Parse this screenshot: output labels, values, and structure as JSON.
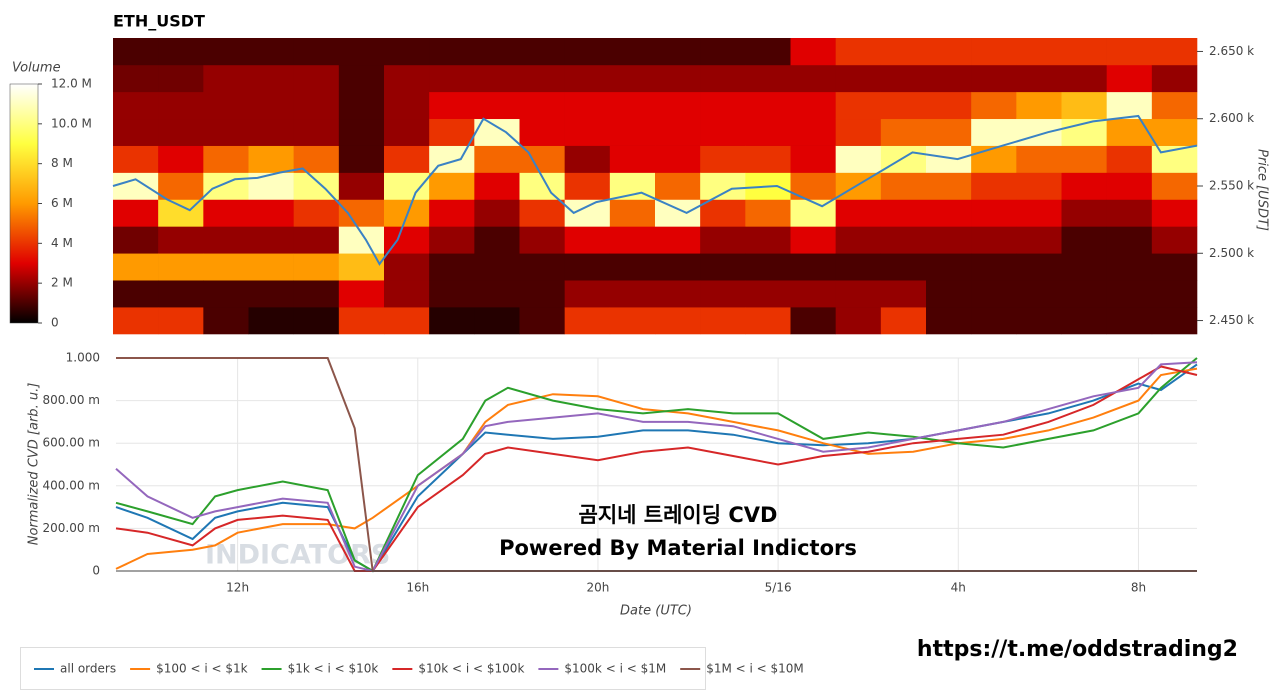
{
  "chart_data": [
    {
      "type": "heatmap",
      "title": "ETH_USDT",
      "ylabel": "Price [USDT]",
      "colorbar_title": "Volume",
      "xlim": [
        9.3,
        33.3
      ],
      "ylim": [
        2440,
        2660
      ],
      "yticks": [
        {
          "value": 2450,
          "label": "2.450 k"
        },
        {
          "value": 2500,
          "label": "2.500 k"
        },
        {
          "value": 2550,
          "label": "2.550 k"
        },
        {
          "value": 2600,
          "label": "2.600 k"
        },
        {
          "value": 2650,
          "label": "2.650 k"
        }
      ],
      "x_bins": [
        9.3,
        10.3,
        11.3,
        12.3,
        13.3,
        14.3,
        15.3,
        16.3,
        17.3,
        18.3,
        19.3,
        20.3,
        21.3,
        22.3,
        23.3,
        24.3,
        25.3,
        26.3,
        27.3,
        28.3,
        29.3,
        30.3,
        31.3,
        32.3,
        33.3
      ],
      "y_bins": [
        2440,
        2460,
        2480,
        2500,
        2520,
        2540,
        2560,
        2580,
        2600,
        2620,
        2640,
        2660
      ],
      "z": [
        [
          4000000,
          1000000,
          6000000,
          1500000,
          3000000,
          11000000,
          4000000,
          2000000,
          2000000,
          1500000,
          1000000
        ],
        [
          4000000,
          1000000,
          6000000,
          2000000,
          8000000,
          5000000,
          3000000,
          2000000,
          2000000,
          1500000,
          1000000
        ],
        [
          1000000,
          1000000,
          6000000,
          2000000,
          3000000,
          10000000,
          5000000,
          2000000,
          2000000,
          2000000,
          1000000
        ],
        [
          500000,
          1000000,
          6000000,
          2000000,
          3000000,
          11000000,
          6000000,
          2000000,
          2000000,
          2000000,
          1000000
        ],
        [
          500000,
          1000000,
          6000000,
          2000000,
          4000000,
          10000000,
          5000000,
          2000000,
          2000000,
          2000000,
          1000000
        ],
        [
          4000000,
          3000000,
          7000000,
          11000000,
          5000000,
          2000000,
          1000000,
          1000000,
          1000000,
          1000000,
          1000000
        ],
        [
          4000000,
          2000000,
          2000000,
          3000000,
          6000000,
          10000000,
          4000000,
          2000000,
          2000000,
          2000000,
          1000000
        ],
        [
          500000,
          1000000,
          1000000,
          2000000,
          3000000,
          6000000,
          11000000,
          4000000,
          3000000,
          2000000,
          1000000
        ],
        [
          500000,
          1000000,
          1000000,
          1000000,
          2000000,
          3000000,
          5000000,
          11000000,
          3000000,
          2000000,
          1000000
        ],
        [
          1000000,
          1000000,
          1000000,
          2000000,
          4000000,
          10000000,
          5000000,
          3000000,
          3000000,
          2000000,
          1000000
        ],
        [
          4000000,
          2000000,
          1000000,
          3000000,
          11000000,
          4000000,
          2000000,
          3000000,
          3000000,
          2000000,
          1000000
        ],
        [
          4000000,
          2000000,
          1000000,
          3000000,
          5000000,
          10000000,
          3000000,
          3000000,
          3000000,
          2000000,
          1000000
        ],
        [
          4000000,
          2000000,
          1000000,
          3000000,
          11000000,
          5000000,
          3000000,
          3000000,
          3000000,
          2000000,
          1000000
        ],
        [
          4000000,
          2000000,
          1000000,
          2000000,
          4000000,
          10000000,
          4000000,
          3000000,
          3000000,
          2000000,
          1000000
        ],
        [
          4000000,
          2000000,
          1000000,
          2000000,
          5000000,
          9000000,
          4000000,
          3000000,
          3000000,
          2000000,
          1000000
        ],
        [
          1000000,
          2000000,
          1000000,
          3000000,
          10000000,
          5000000,
          3000000,
          3000000,
          3000000,
          2000000,
          3000000
        ],
        [
          2000000,
          2000000,
          1000000,
          2000000,
          3000000,
          6000000,
          11000000,
          4000000,
          4000000,
          2000000,
          4000000
        ],
        [
          4000000,
          2000000,
          1000000,
          2000000,
          3000000,
          5000000,
          10000000,
          5000000,
          4000000,
          2000000,
          4000000
        ],
        [
          1000000,
          1000000,
          1000000,
          2000000,
          3000000,
          5000000,
          11000000,
          5000000,
          4000000,
          2000000,
          4000000
        ],
        [
          1000000,
          1000000,
          1000000,
          2000000,
          3000000,
          4000000,
          6000000,
          11000000,
          5000000,
          2000000,
          4000000
        ],
        [
          1000000,
          1000000,
          1000000,
          2000000,
          3000000,
          4000000,
          5000000,
          11000000,
          6000000,
          2000000,
          4000000
        ],
        [
          1000000,
          1000000,
          1000000,
          1000000,
          2000000,
          3000000,
          5000000,
          10000000,
          7000000,
          2000000,
          4000000
        ],
        [
          1000000,
          1000000,
          1000000,
          1000000,
          2000000,
          3000000,
          4000000,
          6000000,
          11000000,
          3000000,
          4000000
        ],
        [
          1000000,
          1000000,
          1000000,
          2000000,
          3000000,
          5000000,
          10000000,
          6000000,
          5000000,
          2000000,
          4000000
        ]
      ],
      "colorscale": [
        "#000000",
        "#e00000",
        "#ff9a00",
        "#ffff40",
        "#ffffff"
      ],
      "clim": [
        0,
        12000000
      ],
      "cticks": [
        0,
        {
          "value": 2000000,
          "label": "2 M"
        },
        {
          "value": 4000000,
          "label": "4 M"
        },
        {
          "value": 6000000,
          "label": "6 M"
        },
        {
          "value": 8000000,
          "label": "8 M"
        },
        {
          "value": 10000000,
          "label": "10.0 M"
        },
        {
          "value": 12000000,
          "label": "12.0 M"
        }
      ],
      "series": [
        {
          "color": "#3a82c4",
          "x": [
            9.3,
            9.8,
            10.5,
            11,
            11.5,
            12,
            12.5,
            13,
            13.5,
            14,
            14.5,
            14.9,
            15.2,
            15.6,
            16,
            16.5,
            17,
            17.5,
            18,
            18.5,
            19,
            19.5,
            20,
            21,
            22,
            23,
            24,
            25,
            26,
            27,
            28,
            29,
            30,
            31,
            32,
            32.5,
            33.3
          ],
          "y": [
            2550,
            2555,
            2540,
            2532,
            2548,
            2555,
            2556,
            2560,
            2563,
            2548,
            2530,
            2510,
            2492,
            2510,
            2545,
            2565,
            2570,
            2600,
            2590,
            2575,
            2545,
            2530,
            2538,
            2545,
            2530,
            2548,
            2550,
            2535,
            2555,
            2575,
            2570,
            2580,
            2590,
            2598,
            2602,
            2575,
            2580
          ]
        }
      ]
    },
    {
      "type": "line",
      "xlabel": "Date (UTC)",
      "ylabel": "Normalized CVD [arb. u.]",
      "grid": true,
      "legend": "bottom",
      "xlim": [
        9.3,
        33.3
      ],
      "ylim": [
        0,
        1
      ],
      "xticks": [
        {
          "value": 12,
          "label": "12h"
        },
        {
          "value": 16,
          "label": "16h"
        },
        {
          "value": 20,
          "label": "20h"
        },
        {
          "value": 24,
          "label": "5/16"
        },
        {
          "value": 28,
          "label": "4h"
        },
        {
          "value": 32,
          "label": "8h"
        }
      ],
      "yticks": [
        0,
        {
          "value": 0.2,
          "label": "200.00 m"
        },
        {
          "value": 0.4,
          "label": "400.00 m"
        },
        {
          "value": 0.6,
          "label": "600.00 m"
        },
        {
          "value": 0.8,
          "label": "800.00 m"
        },
        {
          "value": 1,
          "label": "1.000"
        }
      ],
      "x": [
        9.3,
        10,
        11,
        11.5,
        12,
        13,
        14,
        14.6,
        15,
        16,
        17,
        17.5,
        18,
        19,
        20,
        21,
        22,
        23,
        24,
        25,
        26,
        27,
        28,
        29,
        30,
        31,
        32,
        32.5,
        33.3
      ],
      "series": [
        {
          "name": "all orders",
          "color": "#1f77b4",
          "values": [
            0.3,
            0.25,
            0.15,
            0.25,
            0.28,
            0.32,
            0.3,
            0.05,
            0.0,
            0.35,
            0.55,
            0.65,
            0.64,
            0.62,
            0.63,
            0.66,
            0.66,
            0.64,
            0.6,
            0.59,
            0.6,
            0.62,
            0.66,
            0.7,
            0.74,
            0.8,
            0.88,
            0.85,
            0.97
          ]
        },
        {
          "name": "$100 < i < $1k",
          "color": "#ff7f0e",
          "values": [
            0.01,
            0.08,
            0.1,
            0.12,
            0.18,
            0.22,
            0.22,
            0.2,
            0.25,
            0.4,
            0.55,
            0.7,
            0.78,
            0.83,
            0.82,
            0.76,
            0.74,
            0.7,
            0.66,
            0.6,
            0.55,
            0.56,
            0.6,
            0.62,
            0.66,
            0.72,
            0.8,
            0.92,
            0.95
          ]
        },
        {
          "name": "$1k < i < $10k",
          "color": "#2ca02c",
          "values": [
            0.32,
            0.28,
            0.22,
            0.35,
            0.38,
            0.42,
            0.38,
            0.05,
            0.0,
            0.45,
            0.62,
            0.8,
            0.86,
            0.8,
            0.76,
            0.74,
            0.76,
            0.74,
            0.74,
            0.62,
            0.65,
            0.63,
            0.6,
            0.58,
            0.62,
            0.66,
            0.74,
            0.86,
            1.0
          ]
        },
        {
          "name": "$10k < i < $100k",
          "color": "#d62728",
          "values": [
            0.2,
            0.18,
            0.12,
            0.2,
            0.24,
            0.26,
            0.24,
            0.0,
            0.0,
            0.3,
            0.45,
            0.55,
            0.58,
            0.55,
            0.52,
            0.56,
            0.58,
            0.54,
            0.5,
            0.54,
            0.56,
            0.6,
            0.62,
            0.64,
            0.7,
            0.78,
            0.9,
            0.96,
            0.92
          ]
        },
        {
          "name": "$100k < i < $1M",
          "color": "#9467bd",
          "values": [
            0.48,
            0.35,
            0.25,
            0.28,
            0.3,
            0.34,
            0.32,
            0.02,
            0.0,
            0.4,
            0.55,
            0.68,
            0.7,
            0.72,
            0.74,
            0.7,
            0.7,
            0.68,
            0.62,
            0.56,
            0.58,
            0.62,
            0.66,
            0.7,
            0.76,
            0.82,
            0.86,
            0.97,
            0.98
          ]
        },
        {
          "name": "$1M < i < $10M",
          "color": "#8c564b",
          "values": [
            1,
            1,
            1,
            1,
            1,
            1,
            1,
            0.67,
            0,
            0,
            0,
            0,
            0,
            0,
            0,
            0,
            0,
            0,
            0,
            0,
            0,
            0,
            0,
            0,
            0,
            0,
            0,
            0,
            0
          ]
        }
      ],
      "annotations": [
        "곰지네 트레이딩 CVD",
        "Powered By Material Indictors"
      ],
      "watermark": "INDICATORS"
    }
  ],
  "link": "https://t.me/oddstrading2"
}
